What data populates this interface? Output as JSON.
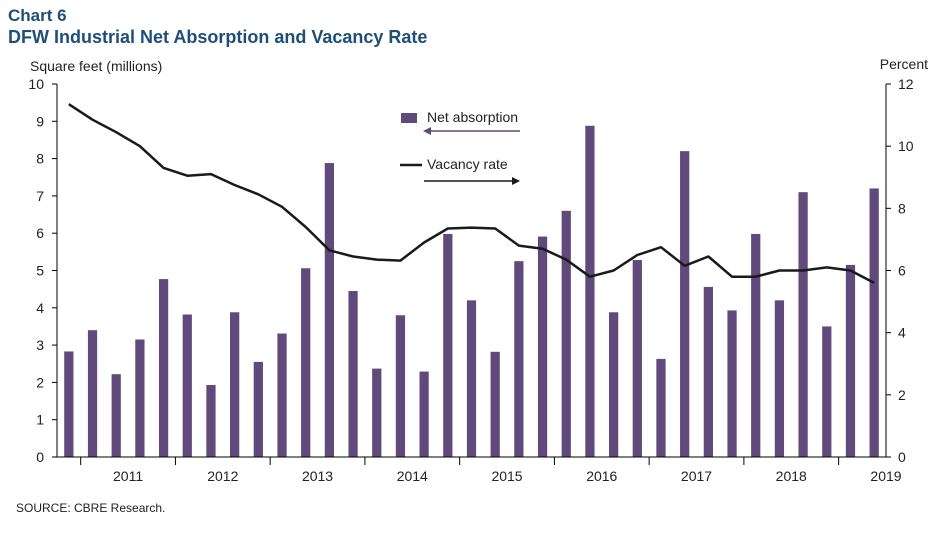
{
  "header": {
    "label": "Chart 6",
    "title": "DFW Industrial Net Absorption and Vacancy Rate"
  },
  "source": "SOURCE: CBRE Research.",
  "chart_data": {
    "type": "bar",
    "title": "DFW Industrial Net Absorption and Vacancy Rate",
    "ylabel": "Square feet (millions)",
    "y2label": "Percent",
    "ylim": [
      0,
      10
    ],
    "y2lim": [
      0,
      12
    ],
    "yticks": [
      "0",
      "1",
      "2",
      "3",
      "4",
      "5",
      "6",
      "7",
      "8",
      "9",
      "10"
    ],
    "y2ticks": [
      "0",
      "2",
      "4",
      "6",
      "8",
      "10",
      "12"
    ],
    "year_labels": [
      "2011",
      "2012",
      "2013",
      "2014",
      "2015",
      "2016",
      "2017",
      "2018",
      "2019"
    ],
    "colors": {
      "bars": "#5f4a7b",
      "line": "#1a1a1a",
      "title": "#1f4e79"
    },
    "legend": {
      "bar_label": "Net absorption",
      "line_label": "Vacancy rate",
      "placement": "top-center"
    },
    "grid": false,
    "series": [
      {
        "name": "Net absorption",
        "kind": "bar",
        "axis": "left",
        "values": [
          2.83,
          3.4,
          2.22,
          3.15,
          4.77,
          3.82,
          1.93,
          3.88,
          2.55,
          3.31,
          5.06,
          7.88,
          4.45,
          2.37,
          3.8,
          2.29,
          5.98,
          4.2,
          2.82,
          5.25,
          5.91,
          6.6,
          8.88,
          3.88,
          5.28,
          2.63,
          8.2,
          4.56,
          3.93,
          5.98,
          4.2,
          7.1,
          3.5,
          5.15,
          7.2
        ]
      },
      {
        "name": "Vacancy rate",
        "kind": "line",
        "axis": "right",
        "values": [
          11.35,
          10.85,
          10.45,
          10.0,
          9.3,
          9.05,
          9.1,
          8.75,
          8.45,
          8.05,
          7.4,
          6.65,
          6.45,
          6.35,
          6.32,
          6.9,
          7.35,
          7.38,
          7.35,
          6.8,
          6.7,
          6.35,
          5.8,
          6.0,
          6.5,
          6.75,
          6.15,
          6.45,
          5.8,
          5.8,
          6.0,
          6.0,
          6.1,
          6.0,
          5.6
        ]
      }
    ]
  }
}
